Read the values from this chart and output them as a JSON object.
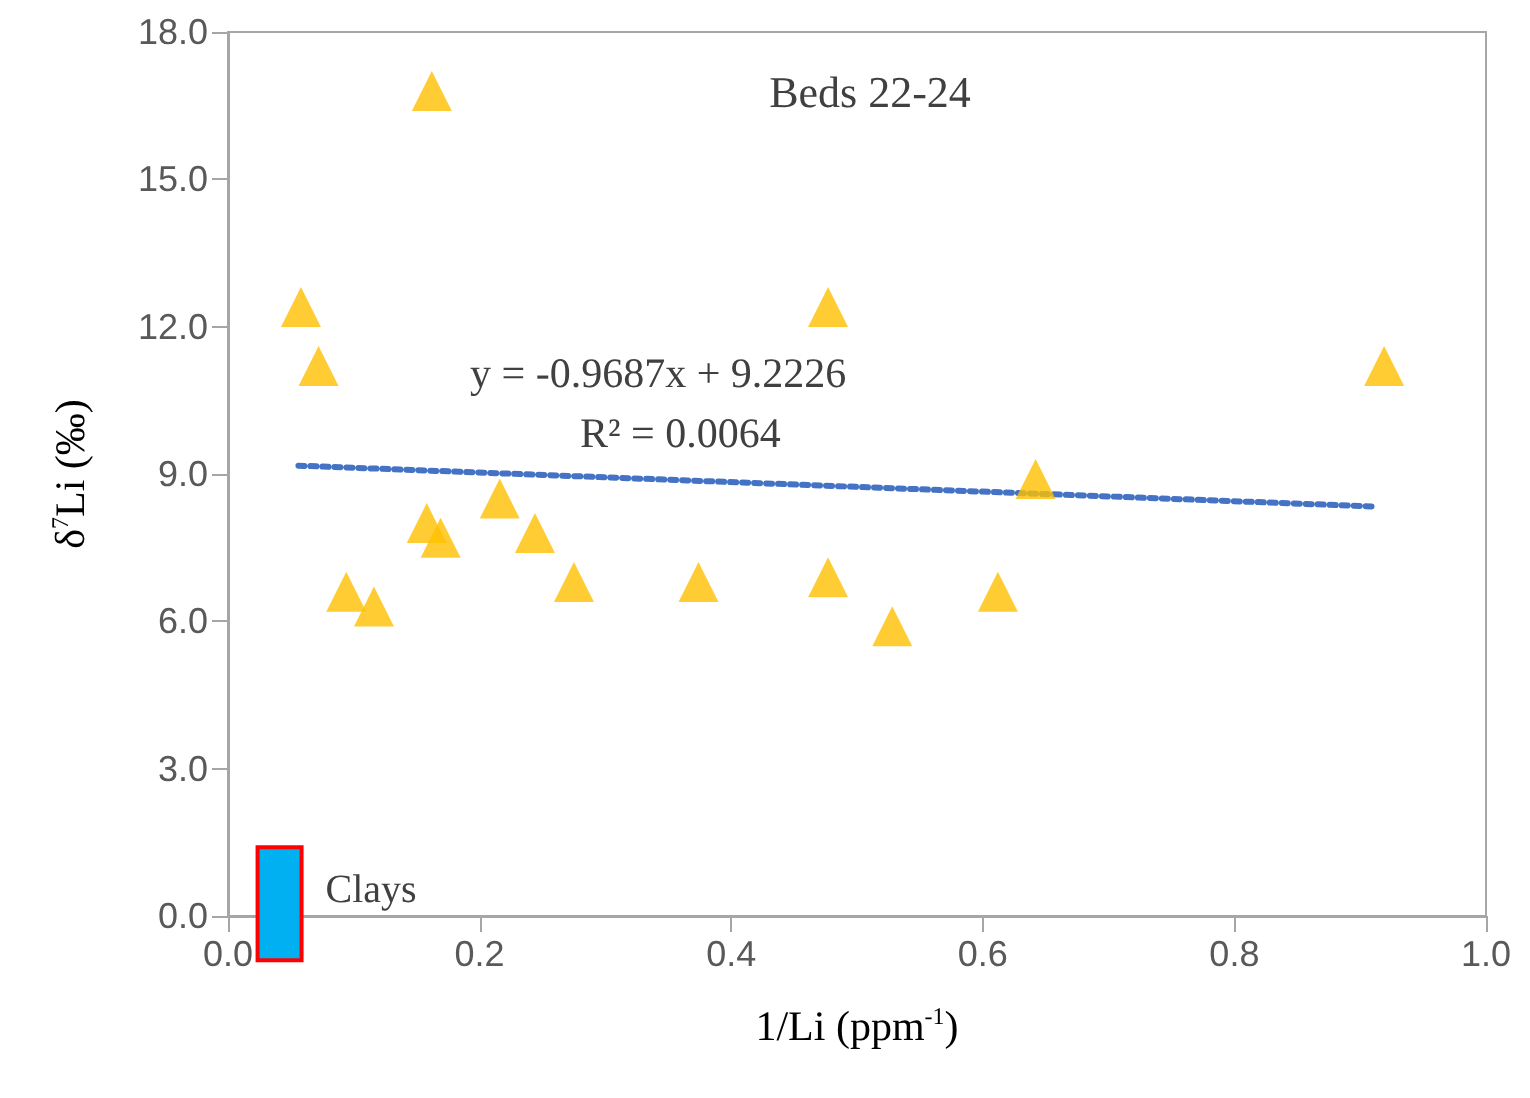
{
  "chart_data": {
    "type": "scatter",
    "title": "Beds 22-24",
    "xlabel": "1/Li (ppm$^{-1}$)",
    "ylabel": "δ$^{7}$Li (‰)",
    "annotations": [
      "y = -0.9687x + 9.2226",
      "R² = 0.0064"
    ],
    "xlim": [
      0,
      1
    ],
    "xticks": [
      {
        "value": 0,
        "label": "0.0"
      },
      {
        "value": 0.2,
        "label": "0.2"
      },
      {
        "value": 0.4,
        "label": "0.4"
      },
      {
        "value": 0.6,
        "label": "0.6"
      },
      {
        "value": 0.8,
        "label": "0.8"
      },
      {
        "value": 1,
        "label": "1.0"
      }
    ],
    "ylim": [
      0,
      18
    ],
    "yticks": [
      {
        "value": 0,
        "label": "0.0"
      },
      {
        "value": 3,
        "label": "3.0"
      },
      {
        "value": 6,
        "label": "6.0"
      },
      {
        "value": 9,
        "label": "9.0"
      },
      {
        "value": 12,
        "label": "12.0"
      },
      {
        "value": 15,
        "label": "15.0"
      },
      {
        "value": 18,
        "label": "18.0"
      }
    ],
    "grid": false,
    "legend": false,
    "series": [
      {
        "color": "#ffc000",
        "marker": "triangle",
        "x": [
          0.162,
          0.058,
          0.072,
          0.477,
          0.216,
          0.158,
          0.169,
          0.244,
          0.094,
          0.116,
          0.275,
          0.374,
          0.477,
          0.919,
          0.642,
          0.528,
          0.612
        ],
        "values": [
          16.8,
          12.4,
          11.2,
          12.4,
          8.5,
          8.0,
          7.7,
          7.8,
          6.6,
          6.3,
          6.8,
          6.8,
          6.9,
          11.2,
          8.9,
          5.9,
          6.6
        ]
      },
      {
        "type": "line",
        "color": "#4472c4",
        "marker": "none",
        "line_style": "dotted",
        "x": [
          0.056,
          0.909
        ],
        "values": [
          9.17,
          8.34
        ]
      },
      {
        "type": "bar",
        "name": "Clays",
        "color": "#00b0f0",
        "x": [
          0.041
        ],
        "base": [
          -0.9
        ],
        "values": [
          2.3
        ]
      }
    ]
  }
}
